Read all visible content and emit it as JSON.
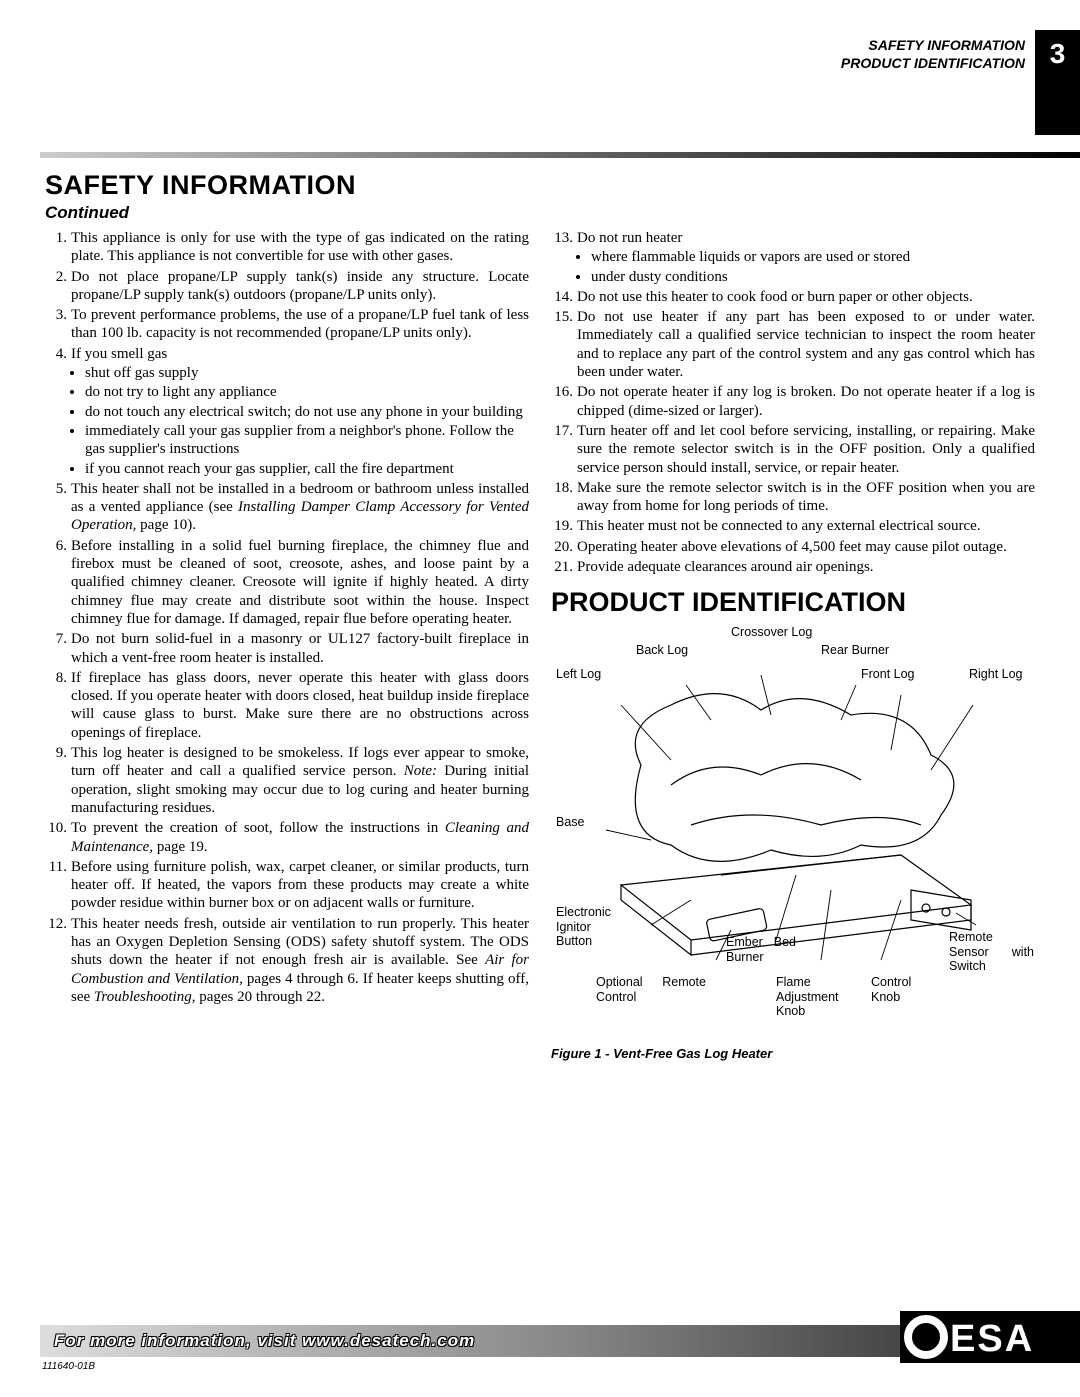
{
  "header": {
    "line1": "SAFETY INFORMATION",
    "line2": "PRODUCT IDENTIFICATION",
    "page_number": "3"
  },
  "section_title": "SAFETY INFORMATION",
  "continued": "Continued",
  "safety_items": [
    {
      "text": "This appliance is only for use with the type of gas indicated on the rating plate. This appliance is not convertible for use with other gases."
    },
    {
      "text": "Do not place propane/LP supply tank(s) inside any structure. Locate propane/LP supply tank(s) outdoors (propane/LP units only)."
    },
    {
      "text": "To prevent performance problems, the use of a propane/LP fuel tank of less than 100 lb. capacity is not recommended (propane/LP units only)."
    },
    {
      "text": "If you smell gas",
      "sub": [
        "shut off gas supply",
        "do not try to light any appliance",
        "do not touch any electrical switch; do not use any phone in your building",
        "immediately call your gas supplier from a neighbor's phone. Follow the gas supplier's instructions",
        "if you cannot reach your gas supplier, call the fire department"
      ]
    },
    {
      "text_html": "This heater shall not be installed in a bedroom or bathroom unless installed as a vented appliance (see <span class='ital'>Installing Damper Clamp Accessory for Vented Operation,</span> page 10)."
    },
    {
      "text": "Before installing in a solid fuel burning fireplace, the chimney flue and firebox must be cleaned of soot, creosote, ashes, and loose paint by a qualified chimney cleaner. Creosote will ignite if highly heated. A dirty chimney flue may create and distribute soot within the house. Inspect chimney flue for damage. If damaged, repair flue before operating heater."
    },
    {
      "text": "Do not burn solid-fuel in a masonry or UL127 factory-built fireplace in which a vent-free room heater is installed."
    },
    {
      "text": "If fireplace has glass doors, never operate this heater with glass doors closed. If you operate heater with doors closed, heat buildup inside fireplace will cause glass to burst. Make sure there are no obstructions across openings of fireplace."
    },
    {
      "text_html": "This log heater is designed to be smokeless. If logs ever appear to smoke, turn off heater and call a qualified service person. <span class='ital'>Note:</span> During initial operation, slight smoking may occur due to log curing and heater burning manufacturing residues."
    },
    {
      "text_html": "To prevent the creation of soot, follow the instructions in <span class='ital'>Cleaning and Maintenance,</span> page 19."
    },
    {
      "text": "Before using furniture polish, wax, carpet cleaner, or similar products, turn heater off. If heated, the vapors from these products may create a white powder residue within burner box or on adjacent walls or furniture."
    },
    {
      "text_html": "This heater needs fresh, outside air ventilation to run properly. This heater has an Oxygen Depletion Sensing (ODS) safety shutoff system. The ODS shuts down the heater if not enough fresh air is available. See <span class='ital'>Air for Combustion and Ventilation,</span> pages 4 through 6. If heater keeps shutting off, see <span class='ital'>Troubleshooting</span>, pages 20 through 22."
    },
    {
      "text": "Do not run heater",
      "sub": [
        "where flammable liquids or vapors are used or stored",
        "under dusty conditions"
      ]
    },
    {
      "text": "Do not use this heater to cook food or burn paper or other objects."
    },
    {
      "text": "Do not use heater if any part has been exposed to or under water. Immediately call a qualified service technician to inspect the room heater and to replace any part of the control system and any gas control which has been under water."
    },
    {
      "text": "Do not operate heater if any log is broken. Do not operate heater if a log is chipped (dime-sized or larger)."
    },
    {
      "text": "Turn heater off and let cool before servicing, installing, or repairing. Make sure the remote selector switch is in the OFF position. Only a qualified service person should install, service, or repair heater."
    },
    {
      "text": "Make sure the remote selector switch is in the OFF position when you are away from home for long periods of time."
    },
    {
      "text": "This heater must not be connected to any external electrical source."
    },
    {
      "text": "Operating heater above elevations of 4,500 feet may cause pilot outage."
    },
    {
      "text": "Provide adequate clearances around air openings."
    }
  ],
  "product_identification": {
    "title": "PRODUCT IDENTIFICATION",
    "labels": {
      "crossover_log": "Crossover Log",
      "back_log": "Back Log",
      "rear_burner": "Rear Burner",
      "left_log": "Left Log",
      "front_log": "Front Log",
      "right_log": "Right Log",
      "base": "Base",
      "electronic_ignitor": "Electronic Ignitor Button",
      "ember_bed_burner": "Ember Bed Burner",
      "remote_sensor": "Remote Sensor with Switch",
      "optional_remote": "Optional Remote Control",
      "flame_adjustment": "Flame Adjustment Knob",
      "control_knob": "Control Knob"
    },
    "caption": "Figure 1 - Vent-Free Gas Log Heater"
  },
  "footer": {
    "text": "For more information, visit www.desatech.com",
    "logo": "DESA",
    "doc_number": "111640-01B"
  },
  "colors": {
    "black": "#000000",
    "white": "#ffffff"
  }
}
